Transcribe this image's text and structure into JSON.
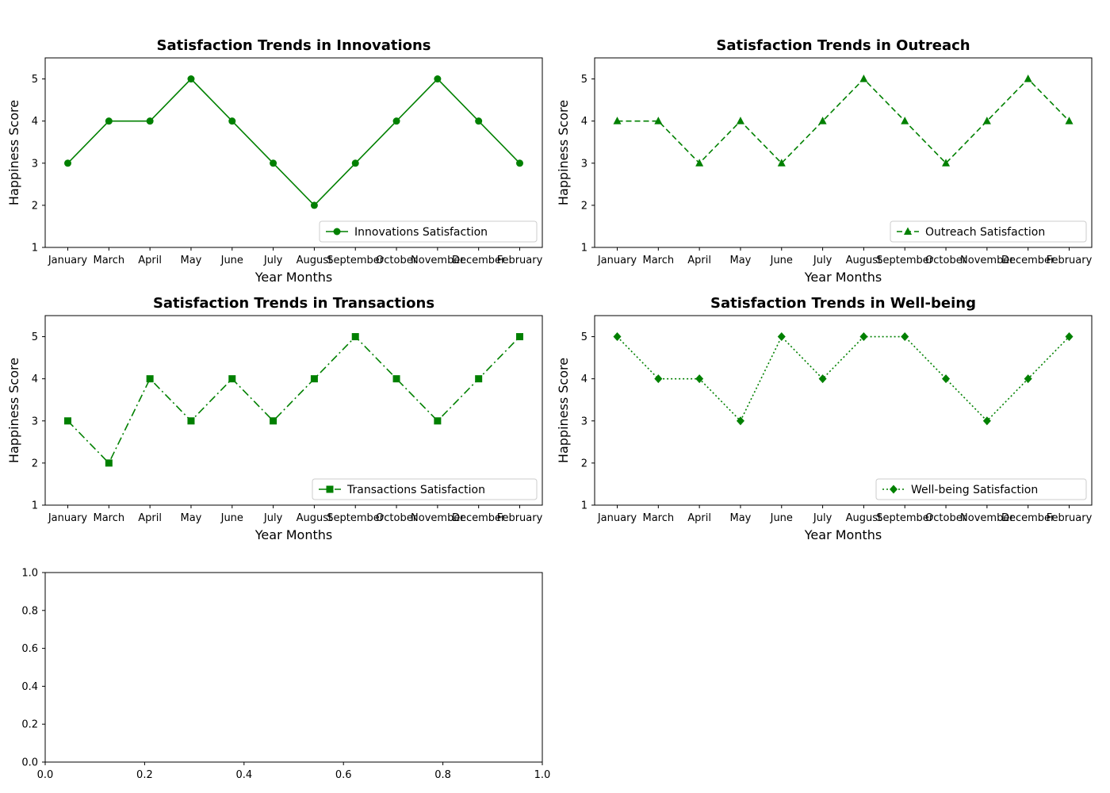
{
  "chart_data": [
    {
      "type": "line",
      "title": "Satisfaction Trends in Innovations",
      "xlabel": "Year Months",
      "ylabel": "Happiness Score",
      "categories": [
        "January",
        "March",
        "April",
        "May",
        "June",
        "July",
        "August",
        "September",
        "October",
        "November",
        "December",
        "February"
      ],
      "ylim": [
        1,
        5.5
      ],
      "yticks": [
        1,
        2,
        3,
        4,
        5
      ],
      "grid": false,
      "legend_position": "lower-right",
      "series": [
        {
          "name": "Innovations Satisfaction",
          "values": [
            3,
            4,
            4,
            5,
            4,
            3,
            2,
            3,
            4,
            5,
            4,
            3
          ],
          "color": "#008000",
          "marker": "circle",
          "linestyle": "solid"
        }
      ]
    },
    {
      "type": "line",
      "title": "Satisfaction Trends in Outreach",
      "xlabel": "Year Months",
      "ylabel": "Happiness Score",
      "categories": [
        "January",
        "March",
        "April",
        "May",
        "June",
        "July",
        "August",
        "September",
        "October",
        "November",
        "December",
        "February"
      ],
      "ylim": [
        1,
        5.5
      ],
      "yticks": [
        1,
        2,
        3,
        4,
        5
      ],
      "grid": false,
      "legend_position": "lower-right",
      "series": [
        {
          "name": "Outreach Satisfaction",
          "values": [
            4,
            4,
            3,
            4,
            3,
            4,
            5,
            4,
            3,
            4,
            5,
            4
          ],
          "color": "#008000",
          "marker": "triangle",
          "linestyle": "dashed"
        }
      ]
    },
    {
      "type": "line",
      "title": "Satisfaction Trends in Transactions",
      "xlabel": "Year Months",
      "ylabel": "Happiness Score",
      "categories": [
        "January",
        "March",
        "April",
        "May",
        "June",
        "July",
        "August",
        "September",
        "October",
        "November",
        "December",
        "February"
      ],
      "ylim": [
        1,
        5.5
      ],
      "yticks": [
        1,
        2,
        3,
        4,
        5
      ],
      "grid": false,
      "legend_position": "lower-right",
      "series": [
        {
          "name": "Transactions Satisfaction",
          "values": [
            3,
            2,
            4,
            3,
            4,
            3,
            4,
            5,
            4,
            3,
            4,
            5
          ],
          "color": "#008000",
          "marker": "square",
          "linestyle": "dashdot"
        }
      ]
    },
    {
      "type": "line",
      "title": "Satisfaction Trends in Well-being",
      "xlabel": "Year Months",
      "ylabel": "Happiness Score",
      "categories": [
        "January",
        "March",
        "April",
        "May",
        "June",
        "July",
        "August",
        "September",
        "October",
        "November",
        "December",
        "February"
      ],
      "ylim": [
        1,
        5.5
      ],
      "yticks": [
        1,
        2,
        3,
        4,
        5
      ],
      "grid": false,
      "legend_position": "lower-right",
      "series": [
        {
          "name": "Well-being Satisfaction",
          "values": [
            5,
            4,
            4,
            3,
            5,
            4,
            5,
            5,
            4,
            3,
            4,
            5
          ],
          "color": "#008000",
          "marker": "diamond",
          "linestyle": "dotted"
        }
      ]
    },
    {
      "type": "line",
      "title": "",
      "xlabel": "",
      "ylabel": "",
      "xlim": [
        0,
        1
      ],
      "ylim": [
        0,
        1
      ],
      "xticks": [
        "0.0",
        "0.2",
        "0.4",
        "0.6",
        "0.8",
        "1.0"
      ],
      "yticks": [
        "0.0",
        "0.2",
        "0.4",
        "0.6",
        "0.8",
        "1.0"
      ],
      "grid": false,
      "series": []
    }
  ]
}
